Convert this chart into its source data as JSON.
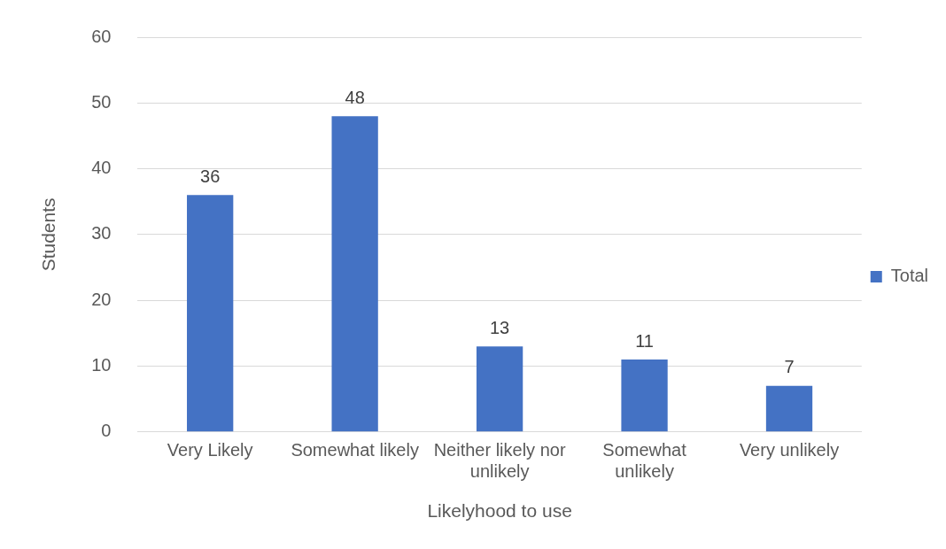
{
  "chart_data": {
    "type": "bar",
    "xlabel": "Likelyhood to use",
    "ylabel": "Students",
    "categories": [
      "Very Likely",
      "Somewhat likely",
      "Neither likely nor unlikely",
      "Somewhat unlikely",
      "Very unlikely"
    ],
    "series": [
      {
        "name": "Total",
        "color": "#4472c4",
        "values": [
          36,
          48,
          13,
          11,
          7
        ]
      }
    ],
    "ylim": [
      0,
      60
    ],
    "yticks": [
      0,
      10,
      20,
      30,
      40,
      50,
      60
    ],
    "grid": "y",
    "legend": "right",
    "data_labels": true
  }
}
